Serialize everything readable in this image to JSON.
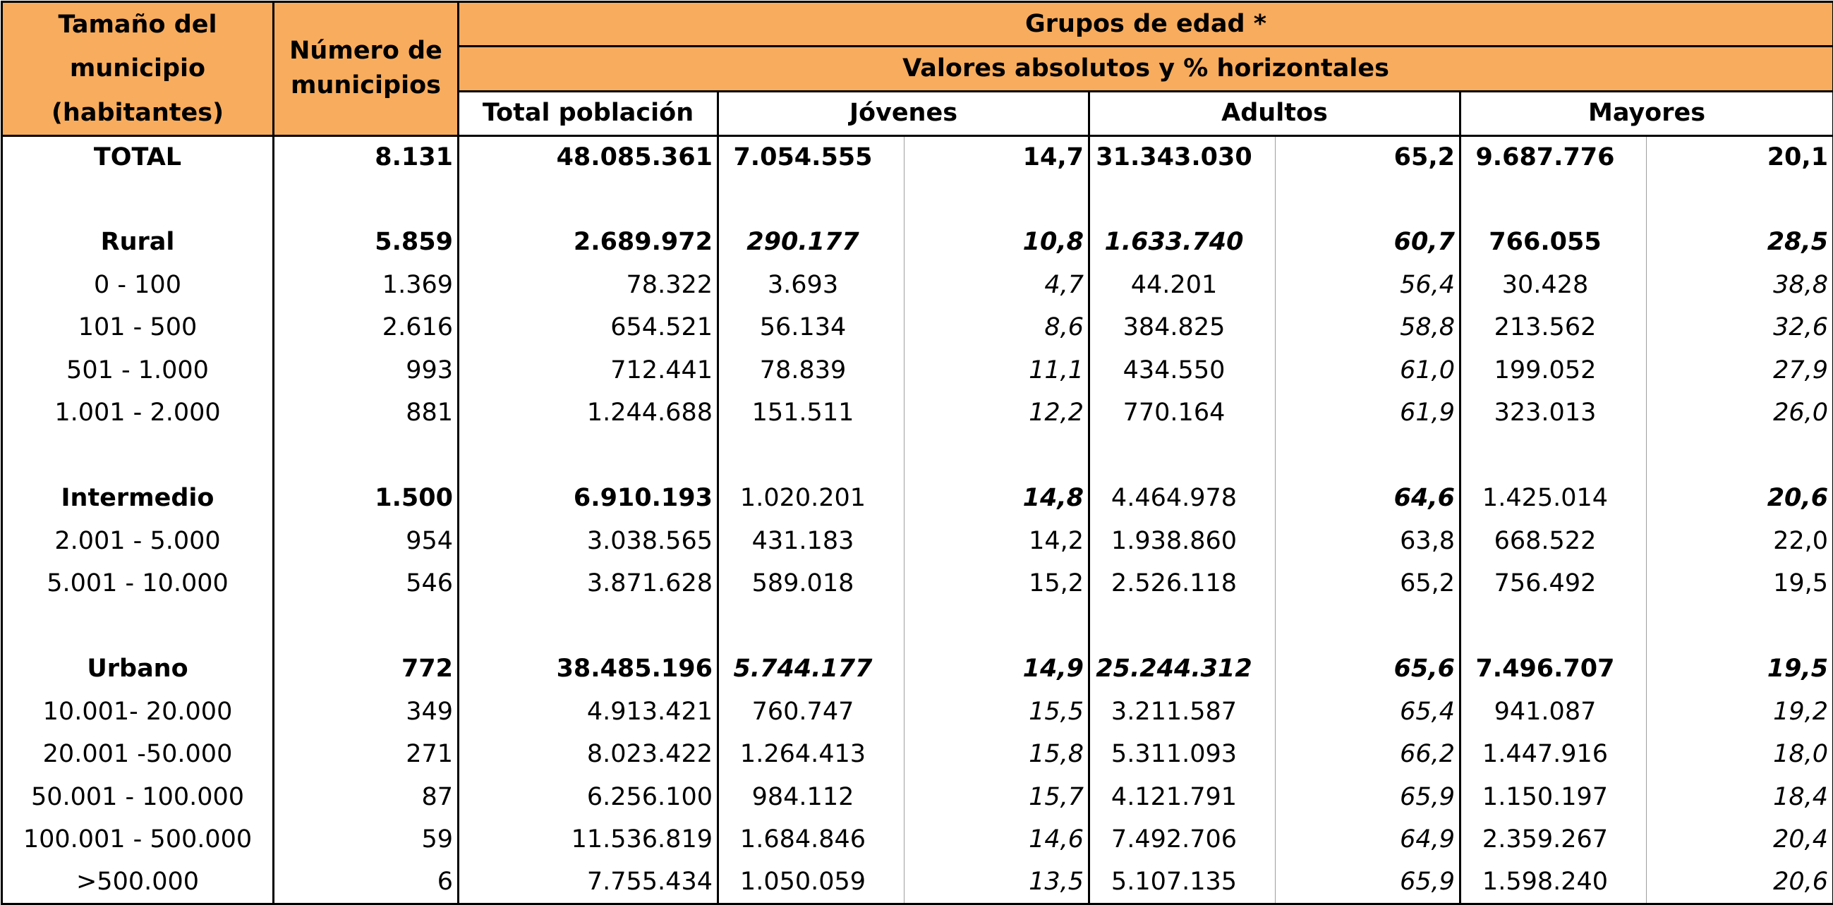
{
  "header": {
    "size_label": "Tamaño del municipio (habitantes)",
    "count_label": "Número de municipios",
    "groups_label": "Grupos de edad *",
    "values_label": "Valores absolutos y % horizontales",
    "total_pop_label": "Total población",
    "young_label": "Jóvenes",
    "adults_label": "Adultos",
    "elderly_label": "Mayores"
  },
  "rows": [
    {
      "kind": "total",
      "label": "TOTAL",
      "count": "8.131",
      "total": "48.085.361",
      "young": "7.054.555",
      "young_pct": "14,7",
      "adults": "31.343.030",
      "adults_pct": "65,2",
      "elderly": "9.687.776",
      "elderly_pct": "20,1"
    },
    {
      "kind": "blank"
    },
    {
      "kind": "group-rural",
      "label": "Rural",
      "count": "5.859",
      "total": "2.689.972",
      "young": "290.177",
      "young_pct": "10,8",
      "adults": "1.633.740",
      "adults_pct": "60,7",
      "elderly": "766.055",
      "elderly_pct": "28,5"
    },
    {
      "kind": "sub-italic",
      "label": "0 - 100",
      "count": "1.369",
      "total": "78.322",
      "young": "3.693",
      "young_pct": "4,7",
      "adults": "44.201",
      "adults_pct": "56,4",
      "elderly": "30.428",
      "elderly_pct": "38,8"
    },
    {
      "kind": "sub-italic",
      "label": "101 - 500",
      "count": "2.616",
      "total": "654.521",
      "young": "56.134",
      "young_pct": "8,6",
      "adults": "384.825",
      "adults_pct": "58,8",
      "elderly": "213.562",
      "elderly_pct": "32,6"
    },
    {
      "kind": "sub-italic",
      "label": "501 - 1.000",
      "count": "993",
      "total": "712.441",
      "young": "78.839",
      "young_pct": "11,1",
      "adults": "434.550",
      "adults_pct": "61,0",
      "elderly": "199.052",
      "elderly_pct": "27,9"
    },
    {
      "kind": "sub-italic",
      "label": "1.001 - 2.000",
      "count": "881",
      "total": "1.244.688",
      "young": "151.511",
      "young_pct": "12,2",
      "adults": "770.164",
      "adults_pct": "61,9",
      "elderly": "323.013",
      "elderly_pct": "26,0"
    },
    {
      "kind": "blank"
    },
    {
      "kind": "group-inter",
      "label": "Intermedio",
      "count": "1.500",
      "total": "6.910.193",
      "young": "1.020.201",
      "young_pct": "14,8",
      "adults": "4.464.978",
      "adults_pct": "64,6",
      "elderly": "1.425.014",
      "elderly_pct": "20,6"
    },
    {
      "kind": "sub-plain",
      "label": "2.001 - 5.000",
      "count": "954",
      "total": "3.038.565",
      "young": "431.183",
      "young_pct": "14,2",
      "adults": "1.938.860",
      "adults_pct": "63,8",
      "elderly": "668.522",
      "elderly_pct": "22,0"
    },
    {
      "kind": "sub-plain",
      "label": "5.001 - 10.000",
      "count": "546",
      "total": "3.871.628",
      "young": "589.018",
      "young_pct": "15,2",
      "adults": "2.526.118",
      "adults_pct": "65,2",
      "elderly": "756.492",
      "elderly_pct": "19,5"
    },
    {
      "kind": "blank"
    },
    {
      "kind": "group-urban",
      "label": "Urbano",
      "count": "772",
      "total": "38.485.196",
      "young": "5.744.177",
      "young_pct": "14,9",
      "adults": "25.244.312",
      "adults_pct": "65,6",
      "elderly": "7.496.707",
      "elderly_pct": "19,5"
    },
    {
      "kind": "sub-italic",
      "label": "10.001- 20.000",
      "count": "349",
      "total": "4.913.421",
      "young": "760.747",
      "young_pct": "15,5",
      "adults": "3.211.587",
      "adults_pct": "65,4",
      "elderly": "941.087",
      "elderly_pct": "19,2"
    },
    {
      "kind": "sub-italic",
      "label": "20.001 -50.000",
      "count": "271",
      "total": "8.023.422",
      "young": "1.264.413",
      "young_pct": "15,8",
      "adults": "5.311.093",
      "adults_pct": "66,2",
      "elderly": "1.447.916",
      "elderly_pct": "18,0"
    },
    {
      "kind": "sub-italic",
      "label": "50.001 - 100.000",
      "count": "87",
      "total": "6.256.100",
      "young": "984.112",
      "young_pct": "15,7",
      "adults": "4.121.791",
      "adults_pct": "65,9",
      "elderly": "1.150.197",
      "elderly_pct": "18,4"
    },
    {
      "kind": "sub-italic",
      "label": "100.001 - 500.000",
      "count": "59",
      "total": "11.536.819",
      "young": "1.684.846",
      "young_pct": "14,6",
      "adults": "7.492.706",
      "adults_pct": "64,9",
      "elderly": "2.359.267",
      "elderly_pct": "20,4"
    },
    {
      "kind": "sub-italic",
      "label": ">500.000",
      "count": "6",
      "total": "7.755.434",
      "young": "1.050.059",
      "young_pct": "13,5",
      "adults": "5.107.135",
      "adults_pct": "65,9",
      "elderly": "1.598.240",
      "elderly_pct": "20,6"
    }
  ]
}
